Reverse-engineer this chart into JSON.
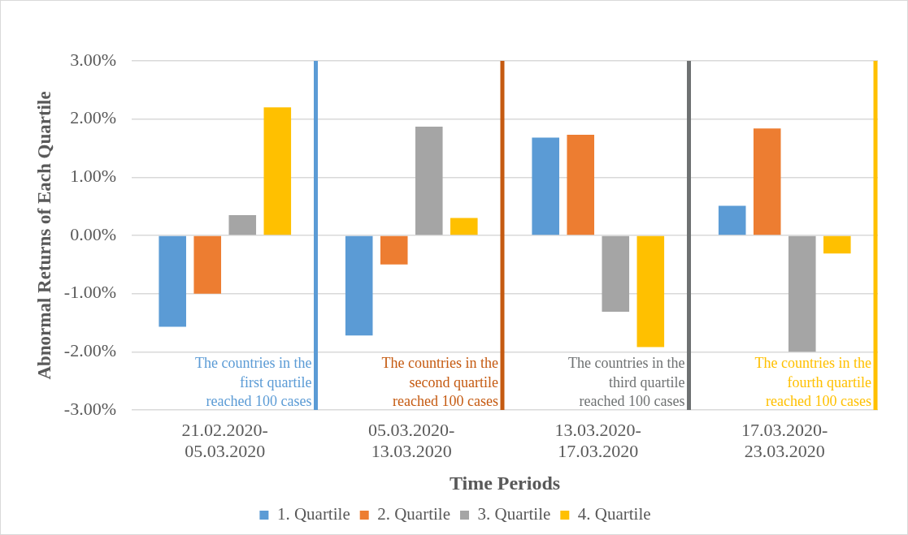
{
  "chart_data": {
    "type": "bar",
    "xlabel": "Time Periods",
    "ylabel": "Abnormal Returns of Each Quartile",
    "categories": [
      "21.02.2020-\n05.03.2020",
      "05.03.2020-\n13.03.2020",
      "13.03.2020-\n17.03.2020",
      "17.03.2020-\n23.03.2020"
    ],
    "series": [
      {
        "name": "1. Quartile",
        "color": "#5b9bd5",
        "values": [
          -1.57,
          -1.72,
          1.68,
          0.51
        ]
      },
      {
        "name": "2. Quartile",
        "color": "#ed7d31",
        "values": [
          -1.0,
          -0.5,
          1.73,
          1.84
        ]
      },
      {
        "name": "3. Quartile",
        "color": "#a5a5a5",
        "values": [
          0.35,
          1.87,
          -1.31,
          -2.0
        ]
      },
      {
        "name": "4. Quartile",
        "color": "#ffc000",
        "values": [
          2.2,
          0.3,
          -1.92,
          -0.31
        ]
      }
    ],
    "ylim": [
      -3,
      3
    ],
    "yticks": [
      {
        "value": -3,
        "label": "-3.00%"
      },
      {
        "value": -2,
        "label": "-2.00%"
      },
      {
        "value": -1,
        "label": "-1.00%"
      },
      {
        "value": 0,
        "label": "0.00%"
      },
      {
        "value": 1,
        "label": "1.00%"
      },
      {
        "value": 2,
        "label": "2.00%"
      },
      {
        "value": 3,
        "label": "3.00%"
      }
    ],
    "grid": "y",
    "legend": "bottom",
    "ref_lines": [
      {
        "axis": "x",
        "value": "21.02.2020-\n05.03.2020",
        "label": "The countries in the\nfirst quartile\nreached 100 cases",
        "color": "#5b9bd5"
      },
      {
        "axis": "x",
        "value": "05.03.2020-\n13.03.2020",
        "label": "The countries in the\nsecond quartile\nreached 100 cases",
        "color": "#c55a11"
      },
      {
        "axis": "x",
        "value": "13.03.2020-\n17.03.2020",
        "label": "The countries in the\nthird quartile\nreached 100 cases",
        "color": "#6e7172"
      },
      {
        "axis": "x",
        "value": "17.03.2020-\n23.03.2020",
        "label": "The countries in the\nfourth quartile\nreached 100 cases",
        "color": "#ffc000"
      }
    ]
  }
}
